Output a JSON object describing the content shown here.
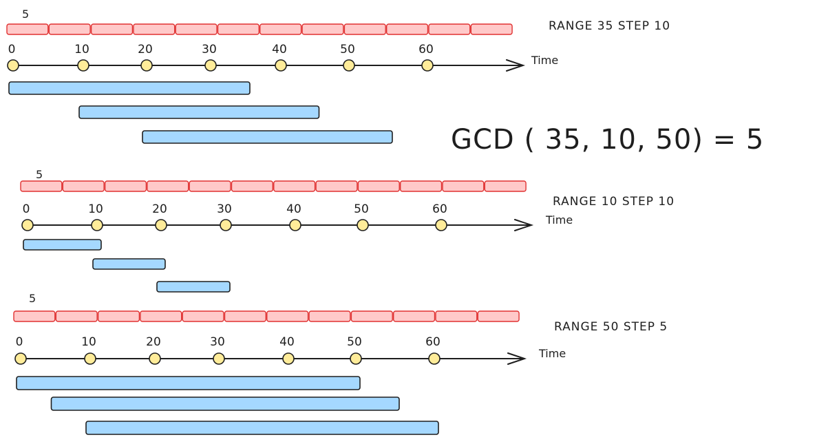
{
  "colors": {
    "segment_fill": "#ffc9c9",
    "segment_stroke": "#e03131",
    "bar_fill": "#a5d8ff",
    "bar_stroke": "#1e1e1e",
    "tick_fill": "#ffec99",
    "line": "#1e1e1e"
  },
  "formula": "GCD ( 35, 10, 50) = 5",
  "sections": [
    {
      "step_label": "5",
      "range_label": "RANGE 35 STEP 10",
      "time_label": "Time",
      "ticks": [
        "0",
        "10",
        "20",
        "30",
        "40",
        "50",
        "60"
      ],
      "windows": [
        {
          "start": 0,
          "end": 35
        },
        {
          "start": 10,
          "end": 45
        },
        {
          "start": 20,
          "end": 55
        }
      ]
    },
    {
      "step_label": "5",
      "range_label": "RANGE 10 STEP 10",
      "time_label": "Time",
      "ticks": [
        "0",
        "10",
        "20",
        "30",
        "40",
        "50",
        "60"
      ],
      "windows": [
        {
          "start": 0,
          "end": 10
        },
        {
          "start": 10,
          "end": 20
        },
        {
          "start": 20,
          "end": 30
        }
      ]
    },
    {
      "step_label": "5",
      "range_label": "RANGE 50 STEP 5",
      "time_label": "Time",
      "ticks": [
        "0",
        "10",
        "20",
        "30",
        "40",
        "50",
        "60"
      ],
      "windows": [
        {
          "start": 0,
          "end": 50
        },
        {
          "start": 5,
          "end": 55
        },
        {
          "start": 10,
          "end": 60
        }
      ]
    }
  ]
}
